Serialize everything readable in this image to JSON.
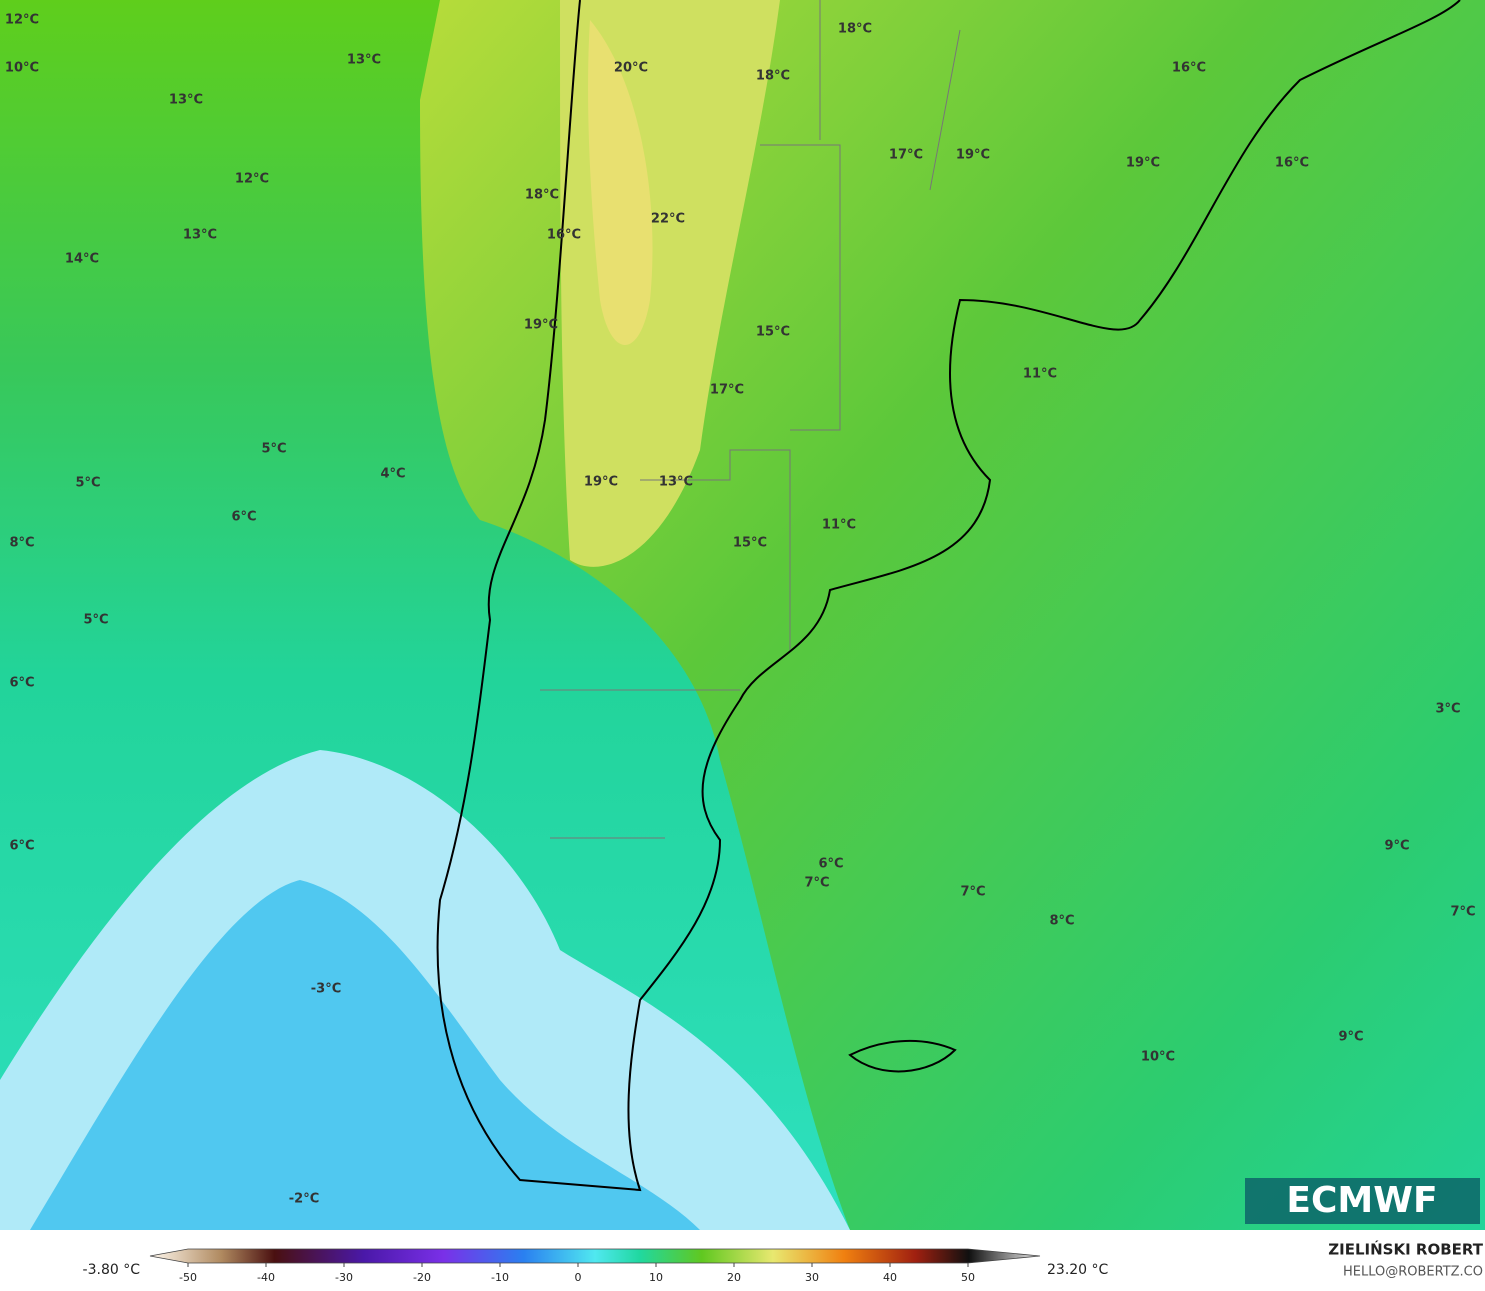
{
  "labels": [
    "12°C",
    "10°C",
    "13°C",
    "13°C",
    "20°C",
    "18°C",
    "18°C",
    "16°C",
    "12°C",
    "17°C",
    "19°C",
    "19°C",
    "16°C",
    "18°C",
    "22°C",
    "16°C",
    "13°C",
    "14°C",
    "19°C",
    "15°C",
    "11°C",
    "17°C",
    "5°C",
    "4°C",
    "5°C",
    "19°C",
    "13°C",
    "6°C",
    "11°C",
    "8°C",
    "15°C",
    "5°C",
    "6°C",
    "3°C",
    "6°C",
    "9°C",
    "6°C",
    "7°C",
    "7°C",
    "7°C",
    "8°C",
    "-3°C",
    "10°C",
    "9°C",
    "-2°C"
  ],
  "legend": {
    "min_label": "-3.80 °C",
    "max_label": "23.20 °C",
    "ticks": [
      -50,
      -40,
      -30,
      -20,
      -10,
      0,
      10,
      20,
      30,
      40,
      50
    ]
  },
  "logo": "ECMWF",
  "credit": {
    "name": "ZIELIŃSKI ROBERT",
    "email": "HELLO@ROBERTZ.CO"
  }
}
